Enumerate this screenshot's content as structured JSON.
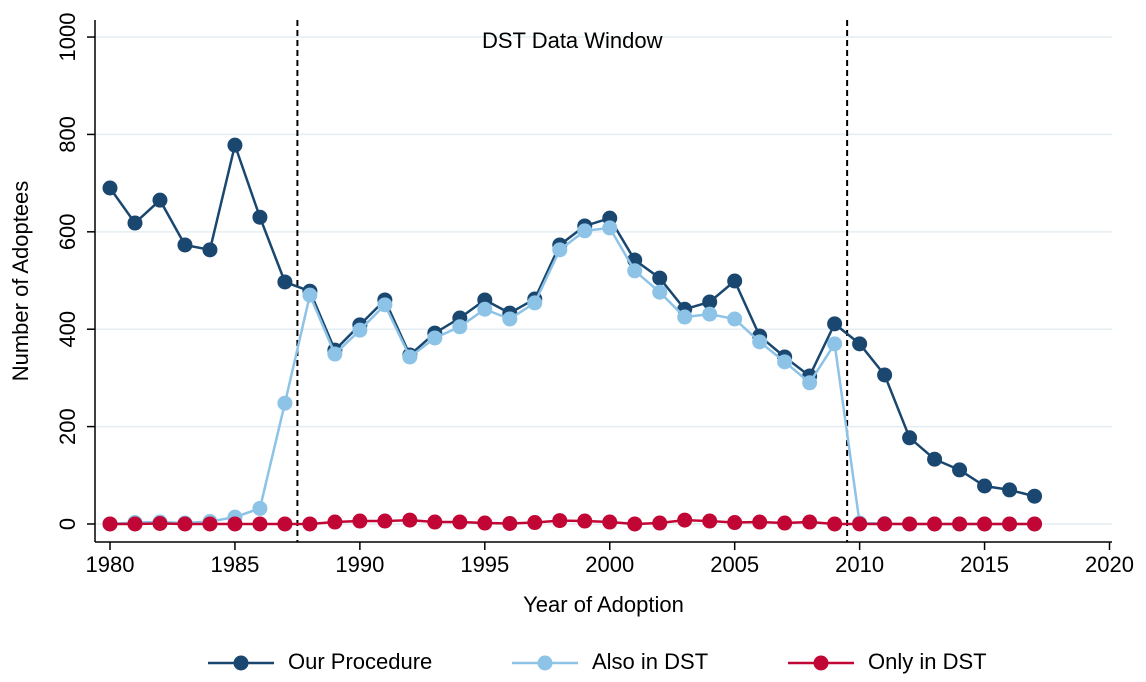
{
  "chart_data": {
    "type": "line",
    "x_label": "Year of Adoption",
    "y_label": "Number of Adoptees",
    "annotation": "DST Data Window",
    "x": [
      1980,
      1981,
      1982,
      1983,
      1984,
      1985,
      1986,
      1987,
      1988,
      1989,
      1990,
      1991,
      1992,
      1993,
      1994,
      1995,
      1996,
      1997,
      1998,
      1999,
      2000,
      2001,
      2002,
      2003,
      2004,
      2005,
      2006,
      2007,
      2008,
      2009,
      2010,
      2011,
      2012,
      2013,
      2014,
      2015,
      2016,
      2017
    ],
    "series": [
      {
        "name": "Our Procedure",
        "color": "#1a476f",
        "values": [
          690,
          618,
          665,
          573,
          563,
          778,
          630,
          497,
          478,
          357,
          409,
          460,
          347,
          392,
          423,
          460,
          433,
          462,
          573,
          612,
          628,
          542,
          505,
          441,
          456,
          499,
          386,
          343,
          304,
          411,
          370,
          306,
          177,
          133,
          111,
          78,
          70,
          57
        ]
      },
      {
        "name": "Also in DST",
        "color": "#8dc3e6",
        "values": [
          0,
          3,
          4,
          2,
          5,
          14,
          32,
          248,
          470,
          349,
          398,
          450,
          343,
          382,
          405,
          441,
          421,
          454,
          563,
          602,
          608,
          520,
          476,
          425,
          431,
          421,
          374,
          333,
          290,
          370,
          2,
          1,
          0,
          0,
          0,
          0,
          0,
          0
        ]
      },
      {
        "name": "Only in DST",
        "color": "#c10534",
        "values": [
          0,
          0,
          1,
          0,
          0,
          0,
          0,
          0,
          0,
          4,
          6,
          6,
          8,
          4,
          4,
          2,
          1,
          3,
          7,
          6,
          4,
          0,
          2,
          8,
          6,
          3,
          4,
          2,
          4,
          0,
          0,
          0,
          0,
          0,
          0,
          0,
          0,
          0
        ]
      }
    ],
    "vlines": [
      1987.5,
      2009.5
    ],
    "xlim": [
      1979.4,
      2020.1
    ],
    "xticks": [
      1980,
      1985,
      1990,
      1995,
      2000,
      2005,
      2010,
      2015,
      2020
    ],
    "ylim": [
      -37,
      1035
    ],
    "yticks": [
      0,
      200,
      400,
      600,
      800,
      1000
    ],
    "grid": true,
    "legend": "bottom"
  }
}
